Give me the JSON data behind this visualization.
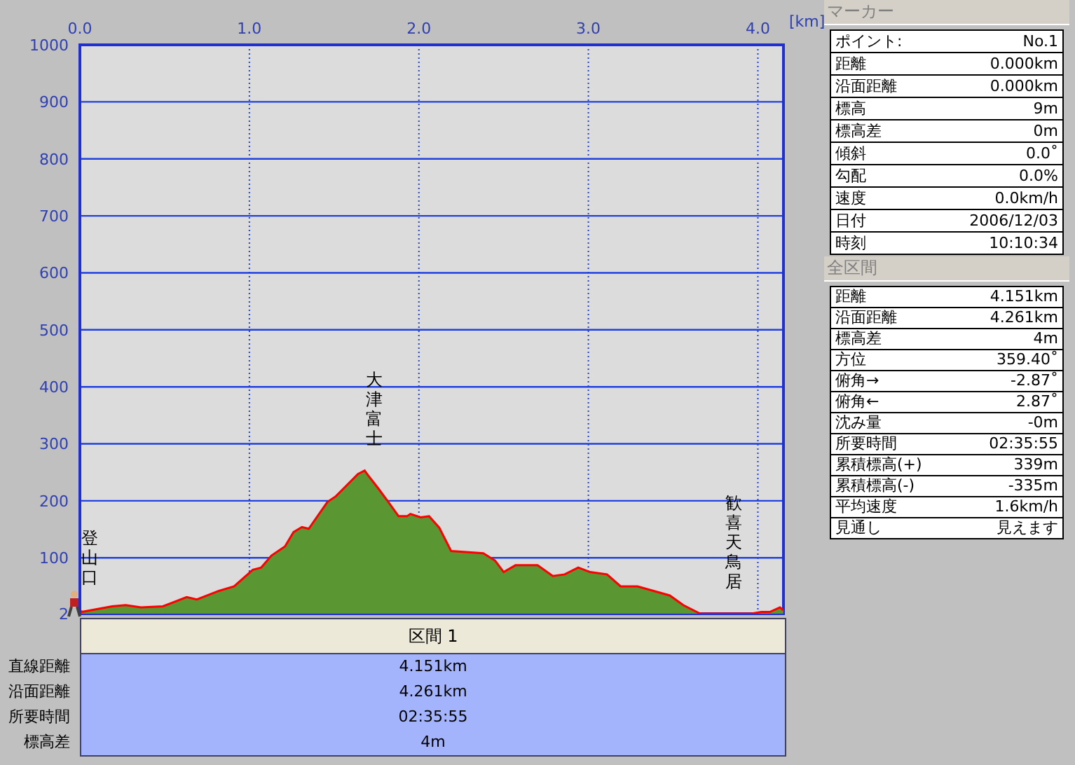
{
  "chart_data": {
    "type": "area",
    "xlabel": "[km]",
    "x": [
      0,
      0.01,
      0.19,
      0.27,
      0.36,
      0.49,
      0.63,
      0.69,
      0.82,
      0.91,
      1.02,
      1.07,
      1.13,
      1.21,
      1.26,
      1.31,
      1.35,
      1.46,
      1.51,
      1.57,
      1.64,
      1.68,
      1.7,
      1.76,
      1.82,
      1.88,
      1.93,
      1.95,
      2.01,
      2.06,
      2.12,
      2.19,
      2.38,
      2.45,
      2.5,
      2.57,
      2.7,
      2.79,
      2.86,
      2.94,
      3.01,
      3.11,
      3.19,
      3.29,
      3.48,
      3.56,
      3.66,
      3.8,
      3.96,
      4.02,
      4.07,
      4.13,
      4.15
    ],
    "series": [
      {
        "color": "#5a9632",
        "values": [
          9,
          5,
          15,
          17,
          13,
          15,
          31,
          27,
          42,
          50,
          79,
          83,
          104,
          120,
          145,
          154,
          151,
          198,
          208,
          226,
          247,
          253,
          245,
          222,
          198,
          173,
          173,
          177,
          171,
          173,
          153,
          112,
          108,
          95,
          75,
          87,
          87,
          68,
          71,
          83,
          75,
          71,
          50,
          50,
          34,
          17,
          2,
          2,
          2,
          5,
          5,
          13,
          8
        ]
      }
    ],
    "xlim": [
      0,
      4.151
    ],
    "xticks": [
      {
        "value": 0,
        "label": "0.0"
      },
      {
        "value": 1,
        "label": "1.0"
      },
      {
        "value": 2,
        "label": "2.0"
      },
      {
        "value": 3,
        "label": "3.0"
      },
      {
        "value": 4,
        "label": "4.0"
      }
    ],
    "ylim": [
      2,
      1000
    ],
    "yticks": [
      2,
      100,
      200,
      300,
      400,
      500,
      600,
      700,
      800,
      900,
      1000
    ],
    "grid": true,
    "legend": false,
    "annotations": [
      {
        "text": "登山口",
        "x": 0,
        "y": 9
      },
      {
        "text": "大津富士",
        "x": 1.68,
        "y": 253
      },
      {
        "text": "歓喜天鳥居",
        "x": 3.8,
        "y": 2
      },
      "マーカー",
      "ポイント:",
      "No.1",
      "距離",
      "0.000km",
      "沿面距離",
      "0.000km",
      "標高",
      "9m",
      "標高差",
      "0m",
      "傾斜",
      "0.0˚",
      "勾配",
      "0.0%",
      "速度",
      "0.0km/h",
      "日付",
      "2006/12/03",
      "時刻",
      "10:10:34",
      "全区間",
      "距離",
      "4.151km",
      "沿面距離",
      "4.261km",
      "標高差",
      "4m",
      "方位",
      "359.40˚",
      "俯角→",
      "-2.87˚",
      "俯角←",
      "2.87˚",
      "沈み量",
      "-0m",
      "所要時間",
      "02:35:55",
      "累積標高(+)",
      "339m",
      "累積標高(-)",
      "-335m",
      "平均速度",
      "1.6km/h",
      "見通し",
      "見えます",
      "区間 1",
      "直線距離",
      "4.151km",
      "沿面距離",
      "4.261km",
      "所要時間",
      "02:35:55",
      "標高差",
      "4m"
    ]
  }
}
